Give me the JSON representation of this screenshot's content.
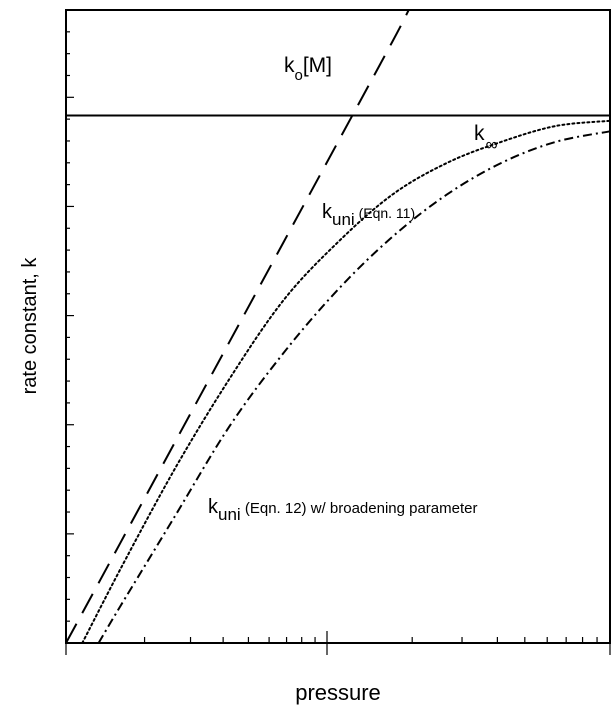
{
  "chart_data": {
    "type": "line",
    "title": "",
    "xlabel": "pressure",
    "ylabel": "rate constant, k",
    "xlim": [
      0,
      1
    ],
    "ylim": [
      0,
      1.2
    ],
    "grid": false,
    "legend": "none",
    "series": [
      {
        "name": "k_o[M]",
        "style": "long-dash",
        "x": [
          0.0,
          0.1,
          0.2,
          0.3,
          0.4,
          0.5,
          0.6,
          0.63
        ],
        "y": [
          0.0,
          0.19,
          0.38,
          0.57,
          0.76,
          0.95,
          1.14,
          1.2
        ]
      },
      {
        "name": "k_∞",
        "style": "solid",
        "x": [
          0.0,
          1.0
        ],
        "y": [
          1.0,
          1.0
        ]
      },
      {
        "name": "k_uni (Eqn. 11)",
        "style": "dotted",
        "x": [
          0.03,
          0.1,
          0.2,
          0.3,
          0.4,
          0.5,
          0.6,
          0.7,
          0.8,
          0.9,
          1.0
        ],
        "y": [
          0.0,
          0.14,
          0.33,
          0.5,
          0.65,
          0.76,
          0.85,
          0.91,
          0.95,
          0.98,
          0.99
        ]
      },
      {
        "name": "k_uni (Eqn. 12) w/ broadening parameter",
        "style": "dash-dot",
        "x": [
          0.06,
          0.1,
          0.2,
          0.3,
          0.4,
          0.5,
          0.6,
          0.7,
          0.8,
          0.9,
          1.0
        ],
        "y": [
          0.0,
          0.07,
          0.24,
          0.41,
          0.55,
          0.67,
          0.77,
          0.85,
          0.91,
          0.95,
          0.97
        ]
      }
    ],
    "annotations": {
      "ko_main": "k",
      "ko_sub": "o",
      "ko_tail": "[M]",
      "kinf_main": "k",
      "kinf_sub": "∞",
      "eq11_main": "k",
      "eq11_sub": "uni",
      "eq11_tail": " (Eqn. 11)",
      "eq12_main": "k",
      "eq12_sub": "uni",
      "eq12_tail": " (Eqn. 12) w/ broadening parameter"
    },
    "colors": {
      "axis": "#000000",
      "line": "#000000",
      "background": "#ffffff"
    }
  }
}
